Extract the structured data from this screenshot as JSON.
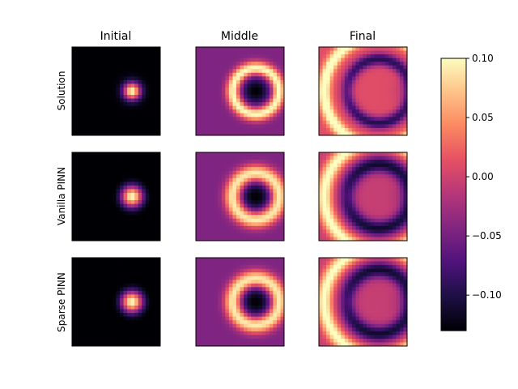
{
  "chart_data": {
    "type": "heatmap",
    "grid": "3x3 panels + colorbar",
    "column_titles": [
      "Initial",
      "Middle",
      "Final"
    ],
    "row_labels": [
      "Solution",
      "Vanilla PINN",
      "Sparse PINN"
    ],
    "colormap": "magma",
    "colorbar": {
      "vmin": -0.13,
      "vmax": 0.1,
      "ticks": [
        0.1,
        0.05,
        0.0,
        -0.05,
        -0.1
      ],
      "tick_labels": [
        "0.10",
        "0.05",
        "0.00",
        "−0.05",
        "−0.10"
      ]
    },
    "panels": [
      {
        "row": "Solution",
        "col": "Initial",
        "pattern": "central bright spot (peak ~0.10) on dark background (~-0.13), spot right of center"
      },
      {
        "row": "Solution",
        "col": "Middle",
        "pattern": "bright ring around dark core, purple background (~-0.04)"
      },
      {
        "row": "Solution",
        "col": "Final",
        "pattern": "large bright arc on left, dark crescent on right, orange-red background"
      },
      {
        "row": "Vanilla PINN",
        "col": "Initial",
        "pattern": "central bright spot with faint halo"
      },
      {
        "row": "Vanilla PINN",
        "col": "Middle",
        "pattern": "bright ring around dark core, smoother"
      },
      {
        "row": "Vanilla PINN",
        "col": "Final",
        "pattern": "bright arc on left, dark crescent, smoother"
      },
      {
        "row": "Sparse PINN",
        "col": "Initial",
        "pattern": "central bright spot with faint halo"
      },
      {
        "row": "Sparse PINN",
        "col": "Middle",
        "pattern": "bright ring around dark core"
      },
      {
        "row": "Sparse PINN",
        "col": "Final",
        "pattern": "bright arc on left, dark crescent"
      }
    ]
  }
}
